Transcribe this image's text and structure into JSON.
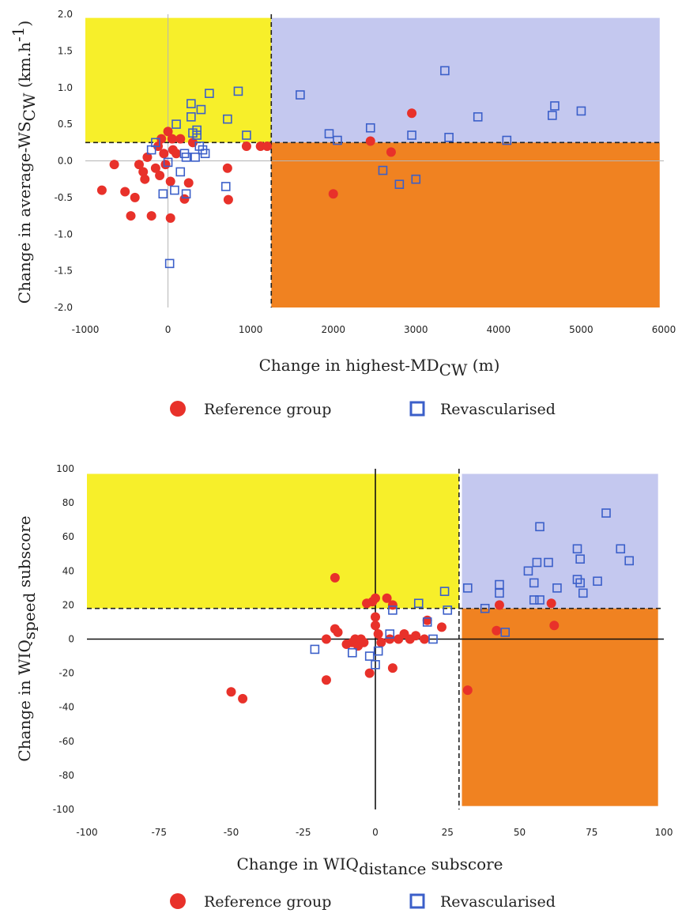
{
  "legend": {
    "reference": "Reference group",
    "revascularised": "Revascularised"
  },
  "colors": {
    "reference": "#e8312a",
    "revascularised": "#3b5fc9",
    "yellow": "#f7ef2a",
    "lavender": "#c4c8ef",
    "orange": "#f08221"
  },
  "chart_data": [
    {
      "type": "scatter",
      "xlabel": {
        "main": "Change in highest-MD",
        "sub": "CW",
        "after": " (m)"
      },
      "ylabel": {
        "main": "Change in average-WS",
        "sub": "CW",
        "after": " (km.h",
        "sup": "-1",
        "close": ")"
      },
      "xlim": [
        -1000,
        6000
      ],
      "ylim": [
        -2.0,
        2.0
      ],
      "xticks": [
        "-1000",
        "0",
        "1000",
        "2000",
        "3000",
        "4000",
        "5000",
        "6000"
      ],
      "yticks": [
        "2.0",
        "1.5",
        "1.0",
        "0.5",
        "0.0",
        "-0.5",
        "-1.0",
        "-1.5",
        "-2.0"
      ],
      "cutoff_x": 1250,
      "cutoff_y": 0.25,
      "regions": {
        "yellow": [
          -1000,
          1250,
          0.25,
          1.95
        ],
        "lavender": [
          1250,
          5950,
          0.25,
          1.95
        ],
        "orange": [
          1250,
          5950,
          -2.0,
          0.25
        ]
      },
      "series": [
        {
          "name": "Reference group",
          "marker": "circle",
          "points": [
            [
              -800,
              -0.4
            ],
            [
              -650,
              -0.05
            ],
            [
              -520,
              -0.42
            ],
            [
              -450,
              -0.75
            ],
            [
              -400,
              -0.5
            ],
            [
              -350,
              -0.05
            ],
            [
              -300,
              -0.15
            ],
            [
              -280,
              -0.25
            ],
            [
              -250,
              0.05
            ],
            [
              -200,
              -0.75
            ],
            [
              -150,
              -0.1
            ],
            [
              -120,
              0.2
            ],
            [
              -100,
              -0.2
            ],
            [
              -80,
              0.3
            ],
            [
              -50,
              0.1
            ],
            [
              -30,
              -0.05
            ],
            [
              0,
              0.4
            ],
            [
              30,
              -0.28
            ],
            [
              30,
              -0.78
            ],
            [
              50,
              0.3
            ],
            [
              60,
              0.15
            ],
            [
              100,
              0.1
            ],
            [
              150,
              0.3
            ],
            [
              200,
              -0.52
            ],
            [
              250,
              -0.3
            ],
            [
              300,
              0.25
            ],
            [
              720,
              -0.1
            ],
            [
              730,
              -0.53
            ],
            [
              950,
              0.2
            ],
            [
              1120,
              0.2
            ],
            [
              1200,
              0.2
            ],
            [
              2000,
              -0.45
            ],
            [
              2450,
              0.27
            ],
            [
              2700,
              0.12
            ],
            [
              2950,
              0.65
            ]
          ]
        },
        {
          "name": "Revascularised",
          "marker": "square",
          "points": [
            [
              -200,
              0.15
            ],
            [
              -150,
              0.25
            ],
            [
              -60,
              -0.45
            ],
            [
              0,
              -0.02
            ],
            [
              20,
              -1.4
            ],
            [
              80,
              -0.4
            ],
            [
              100,
              0.5
            ],
            [
              150,
              -0.15
            ],
            [
              200,
              0.1
            ],
            [
              220,
              0.05
            ],
            [
              220,
              -0.45
            ],
            [
              280,
              0.78
            ],
            [
              280,
              0.6
            ],
            [
              300,
              0.38
            ],
            [
              330,
              0.05
            ],
            [
              350,
              0.35
            ],
            [
              350,
              0.42
            ],
            [
              380,
              0.2
            ],
            [
              400,
              0.7
            ],
            [
              420,
              0.15
            ],
            [
              450,
              0.1
            ],
            [
              500,
              0.92
            ],
            [
              700,
              -0.35
            ],
            [
              720,
              0.57
            ],
            [
              850,
              0.95
            ],
            [
              950,
              0.35
            ],
            [
              1600,
              0.9
            ],
            [
              1950,
              0.37
            ],
            [
              2050,
              0.28
            ],
            [
              2450,
              0.45
            ],
            [
              2600,
              -0.13
            ],
            [
              2800,
              -0.32
            ],
            [
              2950,
              0.35
            ],
            [
              3000,
              -0.25
            ],
            [
              3350,
              1.23
            ],
            [
              3400,
              0.32
            ],
            [
              3750,
              0.6
            ],
            [
              4100,
              0.28
            ],
            [
              4650,
              0.62
            ],
            [
              4680,
              0.75
            ],
            [
              5000,
              0.68
            ]
          ]
        }
      ]
    },
    {
      "type": "scatter",
      "xlabel": {
        "main": "Change in WIQ",
        "sub": "distance",
        "after": " subscore"
      },
      "ylabel": {
        "main": "Change in WIQ",
        "sub": "speed",
        "after": " subscore"
      },
      "xlim": [
        -100,
        100
      ],
      "ylim": [
        -100,
        100
      ],
      "xticks": [
        "-100",
        "-75",
        "-50",
        "-25",
        "0",
        "25",
        "50",
        "75",
        "100"
      ],
      "yticks": [
        "100",
        "80",
        "60",
        "40",
        "20",
        "0",
        "-20",
        "-40",
        "-60",
        "-80",
        "-100"
      ],
      "cutoff_x": 29,
      "cutoff_y": 18,
      "regions": {
        "yellow": [
          -100,
          29,
          18,
          97
        ],
        "lavender": [
          30,
          98,
          18,
          97
        ],
        "orange": [
          30,
          98,
          -98,
          18
        ]
      },
      "series": [
        {
          "name": "Reference group",
          "marker": "circle",
          "points": [
            [
              -50,
              -31
            ],
            [
              -46,
              -35
            ],
            [
              -17,
              -24
            ],
            [
              -17,
              0
            ],
            [
              -14,
              36
            ],
            [
              -14,
              6
            ],
            [
              -13,
              4
            ],
            [
              -10,
              -3
            ],
            [
              -8,
              -2
            ],
            [
              -7,
              0
            ],
            [
              -6,
              -4
            ],
            [
              -5,
              0
            ],
            [
              -4,
              -2
            ],
            [
              -3,
              21
            ],
            [
              -2,
              -20
            ],
            [
              -1,
              22
            ],
            [
              0,
              24
            ],
            [
              0,
              13
            ],
            [
              0,
              8
            ],
            [
              1,
              3
            ],
            [
              2,
              -2
            ],
            [
              4,
              24
            ],
            [
              5,
              0
            ],
            [
              6,
              -17
            ],
            [
              6,
              20
            ],
            [
              8,
              0
            ],
            [
              10,
              3
            ],
            [
              12,
              0
            ],
            [
              14,
              2
            ],
            [
              17,
              0
            ],
            [
              18,
              11
            ],
            [
              23,
              7
            ],
            [
              32,
              -30
            ],
            [
              42,
              5
            ],
            [
              43,
              20
            ],
            [
              61,
              21
            ],
            [
              62,
              8
            ]
          ]
        },
        {
          "name": "Revascularised",
          "marker": "square",
          "points": [
            [
              -21,
              -6
            ],
            [
              -8,
              -8
            ],
            [
              -2,
              -10
            ],
            [
              0,
              -15
            ],
            [
              1,
              -7
            ],
            [
              5,
              3
            ],
            [
              6,
              17
            ],
            [
              15,
              21
            ],
            [
              18,
              10
            ],
            [
              20,
              0
            ],
            [
              24,
              28
            ],
            [
              25,
              17
            ],
            [
              32,
              30
            ],
            [
              38,
              18
            ],
            [
              43,
              27
            ],
            [
              43,
              32
            ],
            [
              45,
              4
            ],
            [
              53,
              40
            ],
            [
              55,
              23
            ],
            [
              55,
              33
            ],
            [
              56,
              45
            ],
            [
              57,
              23
            ],
            [
              57,
              66
            ],
            [
              60,
              45
            ],
            [
              63,
              30
            ],
            [
              70,
              53
            ],
            [
              70,
              35
            ],
            [
              71,
              47
            ],
            [
              71,
              33
            ],
            [
              72,
              27
            ],
            [
              77,
              34
            ],
            [
              80,
              74
            ],
            [
              85,
              53
            ],
            [
              88,
              46
            ]
          ]
        }
      ]
    }
  ]
}
